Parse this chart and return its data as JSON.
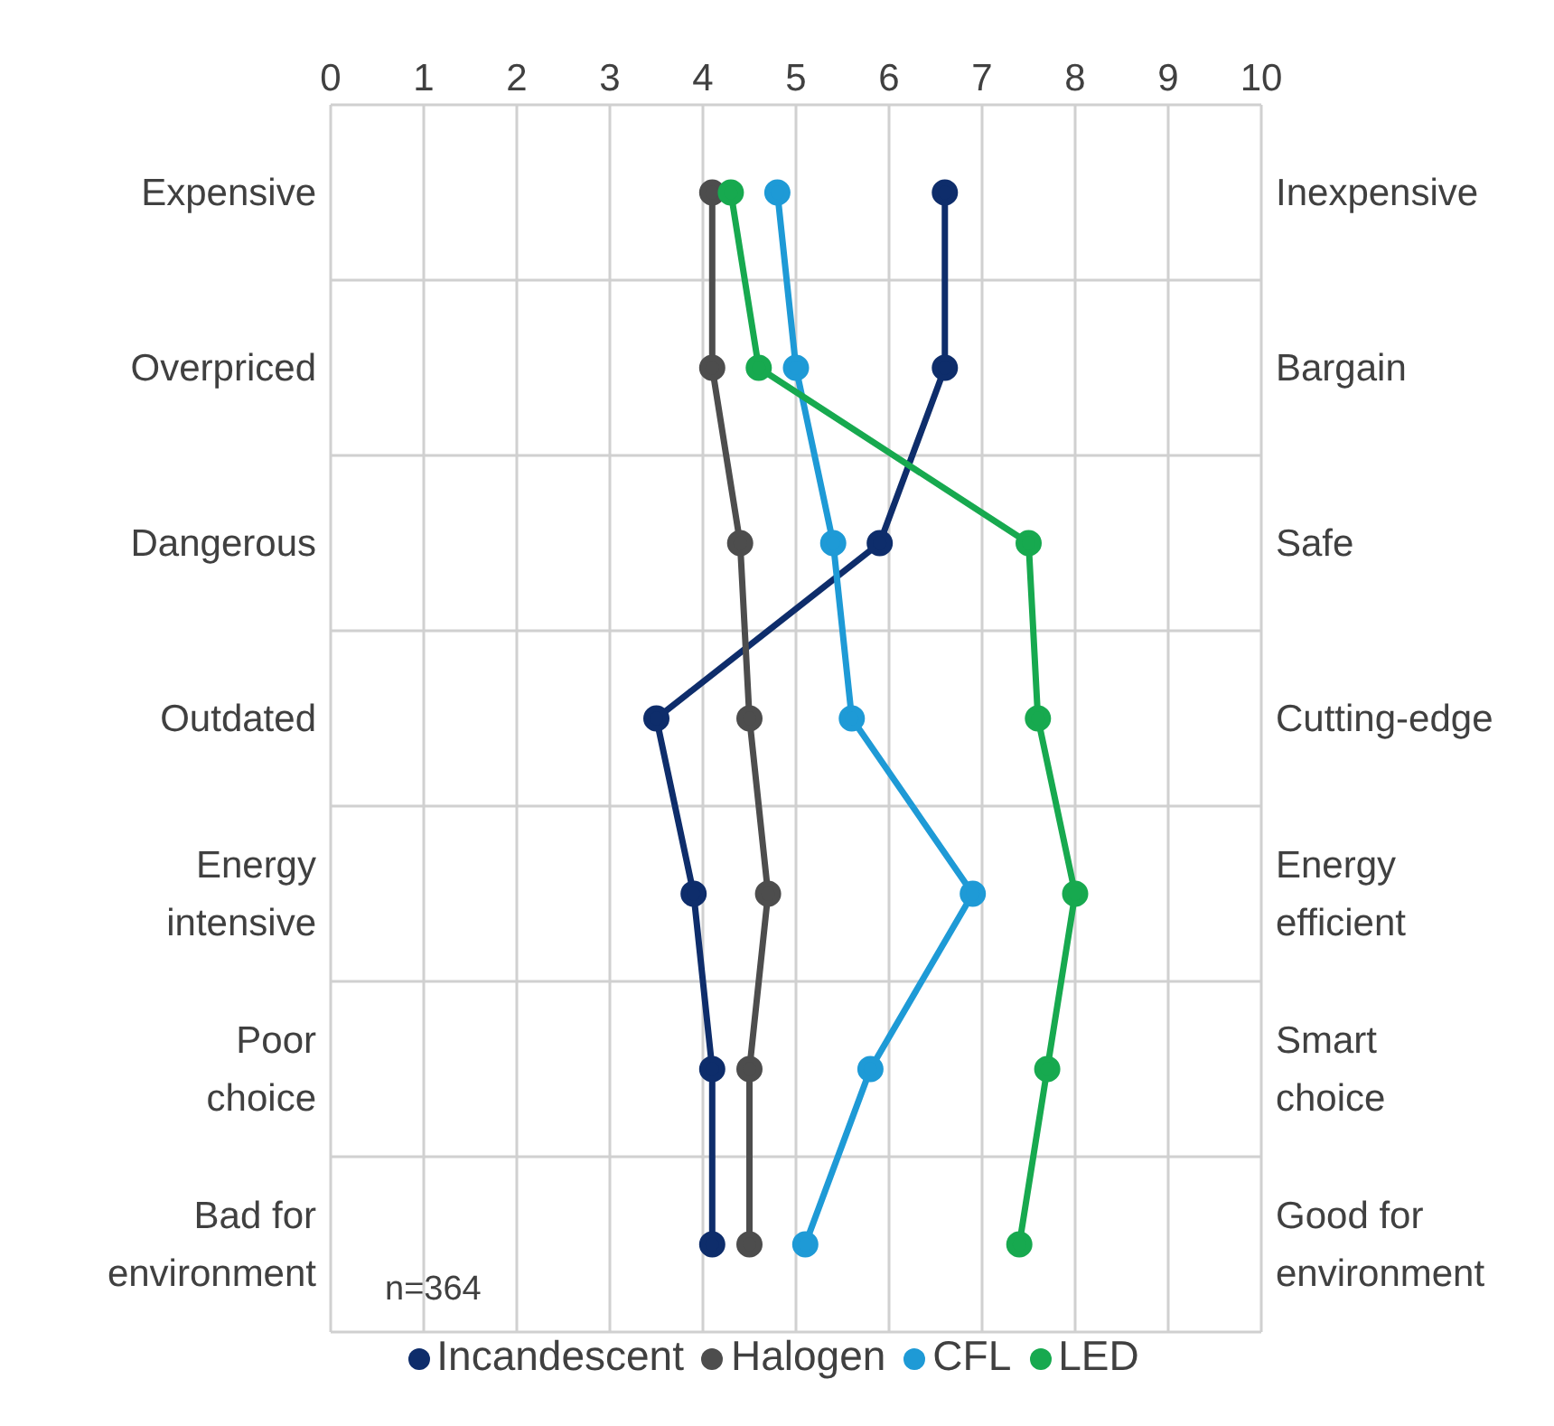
{
  "chart_data": {
    "type": "line",
    "orientation": "horizontal",
    "categories": [
      "Expensive",
      "Overpriced",
      "Dangerous",
      "Outdated",
      "Energy intensive",
      "Poor choice",
      "Bad for environment"
    ],
    "y2_categories": [
      "Inexpensive",
      "Bargain",
      "Safe",
      "Cutting-edge",
      "Energy efficient",
      "Smart choice",
      "Good for environment"
    ],
    "xlim": [
      0,
      10
    ],
    "xticks": [
      0,
      1,
      2,
      3,
      4,
      5,
      6,
      7,
      8,
      9,
      10
    ],
    "grid": true,
    "legend": "bottom",
    "marker": "circle",
    "line_style": "solid",
    "annotations": [
      "n=364"
    ],
    "series": [
      {
        "name": "Incandescent",
        "color": "#0e2d6b",
        "values": [
          6.6,
          6.6,
          5.9,
          3.5,
          3.9,
          4.1,
          4.1
        ]
      },
      {
        "name": "Halogen",
        "color": "#4d4d4d",
        "values": [
          4.1,
          4.1,
          4.4,
          4.5,
          4.7,
          4.5,
          4.5
        ]
      },
      {
        "name": "CFL",
        "color": "#1e9ad6",
        "values": [
          4.8,
          5.0,
          5.4,
          5.6,
          6.9,
          5.8,
          5.1
        ]
      },
      {
        "name": "LED",
        "color": "#17a94f",
        "values": [
          4.3,
          4.6,
          7.5,
          7.6,
          8.0,
          7.7,
          7.4
        ]
      }
    ]
  }
}
